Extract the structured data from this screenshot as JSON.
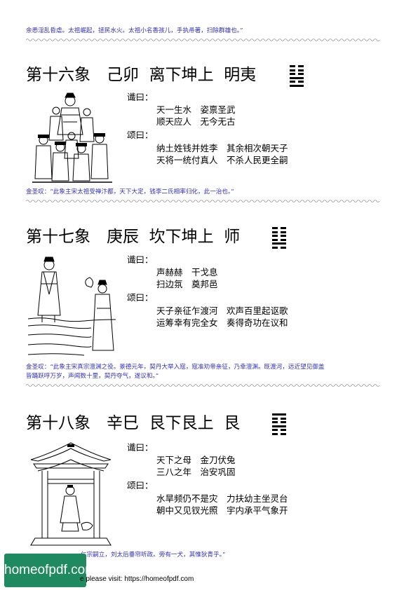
{
  "top_comment": "余悉淫乱昏虐。太祖崛起，拯民水火。太祖小名香孩儿，手执帚著，扫除群雄也。”",
  "sections": [
    {
      "heading": "第十六象　己卯  离下坤上  明夷",
      "hexagram": [
        "broken",
        "broken",
        "broken",
        "full",
        "broken",
        "full"
      ],
      "chen_label": "谶曰：",
      "chen": [
        "天一生水　姿禀圣武",
        "顺天应人　无今无古"
      ],
      "song_label": "颂曰：",
      "song": [
        "纳土姓钱并姓李　其余相次朝天子",
        "天将一统付真人　不杀人民更全嗣"
      ],
      "comment": [
        "金圣叹：“此象主宋太祖受禅汴都，天下大定，钱李二氏相率归化，此一治也。”"
      ]
    },
    {
      "heading": "第十七象　庚辰  坎下坤上  师",
      "hexagram": [
        "broken",
        "broken",
        "broken",
        "broken",
        "full",
        "broken"
      ],
      "chen_label": "谶曰：",
      "chen": [
        "声赫赫　干戈息",
        "扫边氛　奠邦邑"
      ],
      "song_label": "颂曰：",
      "song": [
        "天子亲征乍渡河　欢声百里起讴歌",
        "运筹幸有完全女　奏得奇功在议和"
      ],
      "comment": [
        "金圣叹：“此象主宋真宗澶渊之役。景德元年，契丹大举入寇，寇准劝帝亲征，乃幸澶渊。既渡河，远近望见御盖",
        "皆踊跃呼万岁，声闻数十里，契丹夺气，遂议和。”"
      ]
    },
    {
      "heading": "第十八象　辛巳  艮下艮上  艮",
      "hexagram": [
        "full",
        "broken",
        "broken",
        "full",
        "broken",
        "broken"
      ],
      "chen_label": "谶曰：",
      "chen": [
        "天下之母　金刀伏兔",
        "三八之年　治安巩固"
      ],
      "song_label": "颂曰：",
      "song": [
        "水旱频仍不是灾　力扶幼主坐灵台",
        "朝中又见钗光照　宇内承平气象开"
      ],
      "comment": [
        "仁宗嗣立，刘太后垂帘听政。旁有一犬，其惟狄青乎。”"
      ]
    }
  ],
  "logo_text": "homeofpdf.com",
  "footer_text": "e please visit: https://homeofpdf.com"
}
